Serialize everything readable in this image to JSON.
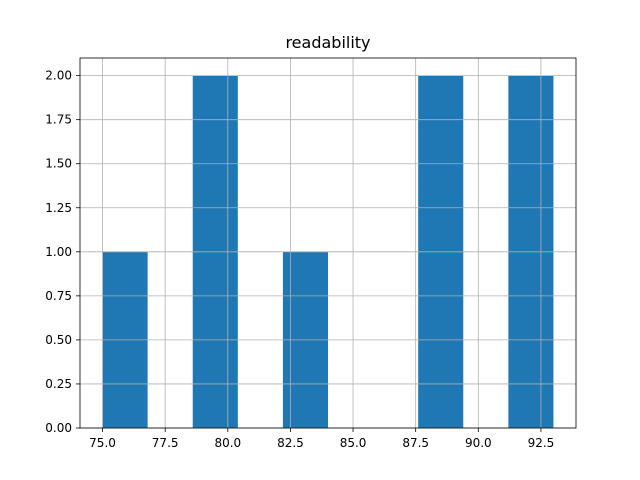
{
  "chart_data": {
    "type": "bar",
    "title": "readability",
    "xlabel": "",
    "ylabel": "",
    "bins": [
      {
        "start": 75.0,
        "end": 76.8,
        "count": 1
      },
      {
        "start": 78.6,
        "end": 80.4,
        "count": 2
      },
      {
        "start": 82.2,
        "end": 84.0,
        "count": 1
      },
      {
        "start": 87.6,
        "end": 89.4,
        "count": 2
      },
      {
        "start": 91.2,
        "end": 93.0,
        "count": 2
      }
    ],
    "xlim": [
      74.1,
      93.9
    ],
    "ylim": [
      0,
      2.1
    ],
    "x_ticks": [
      75.0,
      77.5,
      80.0,
      82.5,
      85.0,
      87.5,
      90.0,
      92.5
    ],
    "x_tick_labels": [
      "75.0",
      "77.5",
      "80.0",
      "82.5",
      "85.0",
      "87.5",
      "90.0",
      "92.5"
    ],
    "y_ticks": [
      0,
      0.25,
      0.5,
      0.75,
      1.0,
      1.25,
      1.5,
      1.75,
      2.0
    ],
    "y_tick_labels": [
      "0.00",
      "0.25",
      "0.50",
      "0.75",
      "1.00",
      "1.25",
      "1.50",
      "1.75",
      "2.00"
    ],
    "grid": true,
    "bar_color": "#1f77b4",
    "grid_color": "#b0b0b0"
  }
}
